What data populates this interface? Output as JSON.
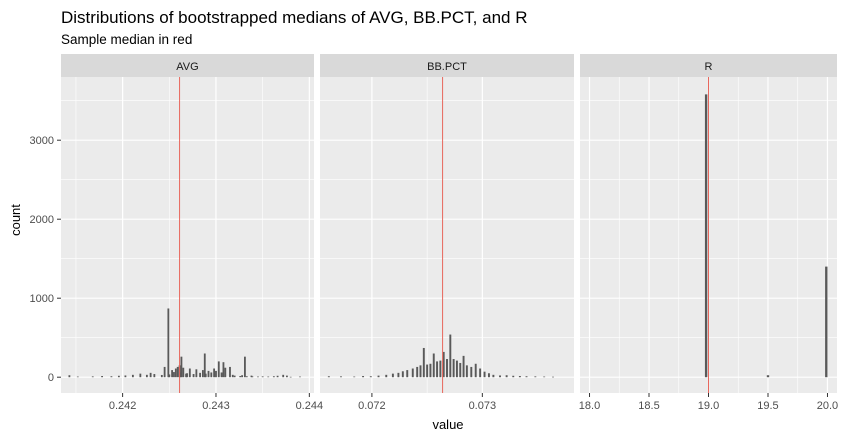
{
  "chart_data": {
    "type": "bar",
    "title": "Distributions of bootstrapped medians of AVG, BB.PCT, and R",
    "subtitle": "Sample median in red",
    "xlabel": "value",
    "ylabel": "count",
    "ylim": [
      -200,
      3800
    ],
    "yticks": [
      0,
      1000,
      2000,
      3000
    ],
    "colors": {
      "bar": "#595959",
      "median_line": "#e8675d",
      "panel_bg": "#ebebeb",
      "strip_bg": "#d9d9d9",
      "grid": "#ffffff"
    },
    "panels": [
      {
        "label": "AVG",
        "xlim": [
          0.24134,
          0.24405
        ],
        "xticks": [
          0.242,
          0.243,
          0.244
        ],
        "xtick_labels": [
          "0.242",
          "0.243",
          "0.244"
        ],
        "median": 0.24261,
        "bar_width": 1.95e-05,
        "bars": [
          [
            0.24143,
            25
          ],
          [
            0.24152,
            8
          ],
          [
            0.24168,
            10
          ],
          [
            0.24178,
            15
          ],
          [
            0.24188,
            12
          ],
          [
            0.24196,
            18
          ],
          [
            0.24203,
            22
          ],
          [
            0.24211,
            30
          ],
          [
            0.24219,
            45
          ],
          [
            0.24226,
            30
          ],
          [
            0.24234,
            40
          ],
          [
            0.24242,
            28
          ],
          [
            0.2425,
            35
          ],
          [
            0.24255,
            65
          ],
          [
            0.24262,
            60
          ],
          [
            0.24269,
            50
          ],
          [
            0.24276,
            40
          ],
          [
            0.24283,
            55
          ],
          [
            0.24289,
            45
          ],
          [
            0.24295,
            60
          ],
          [
            0.243,
            80
          ],
          [
            0.24306,
            60
          ],
          [
            0.2431,
            120
          ],
          [
            0.24315,
            130
          ],
          [
            0.2432,
            20
          ],
          [
            0.24326,
            15
          ],
          [
            0.24333,
            12
          ],
          [
            0.24339,
            10
          ],
          [
            0.24345,
            8
          ],
          [
            0.2435,
            10
          ],
          [
            0.24356,
            8
          ],
          [
            0.24362,
            12
          ],
          [
            0.24366,
            18
          ],
          [
            0.24372,
            30
          ],
          [
            0.24376,
            20
          ],
          [
            0.2438,
            5
          ],
          [
            0.2439,
            8
          ],
          [
            0.24268,
            45
          ],
          [
            0.2423,
            55
          ],
          [
            0.24245,
            130
          ],
          [
            0.24249,
            870
          ],
          [
            0.24253,
            90
          ],
          [
            0.24257,
            110
          ],
          [
            0.24259,
            130
          ],
          [
            0.24261,
            150
          ],
          [
            0.24263,
            260
          ],
          [
            0.24265,
            120
          ],
          [
            0.24272,
            110
          ],
          [
            0.24279,
            100
          ],
          [
            0.24286,
            90
          ],
          [
            0.24288,
            300
          ],
          [
            0.24292,
            80
          ],
          [
            0.24298,
            110
          ],
          [
            0.24303,
            200
          ],
          [
            0.24308,
            190
          ],
          [
            0.24318,
            30
          ],
          [
            0.24328,
            25
          ],
          [
            0.24331,
            260
          ],
          [
            0.24338,
            20
          ]
        ]
      },
      {
        "label": "BB.PCT",
        "xlim": [
          0.07153,
          0.07383
        ],
        "xticks": [
          0.072,
          0.073
        ],
        "xtick_labels": [
          "0.072",
          "0.073"
        ],
        "median": 0.07264,
        "bar_width": 1.75e-05,
        "bars": [
          [
            0.07161,
            12
          ],
          [
            0.07172,
            10
          ],
          [
            0.07184,
            8
          ],
          [
            0.07192,
            15
          ],
          [
            0.07199,
            12
          ],
          [
            0.07206,
            20
          ],
          [
            0.07213,
            30
          ],
          [
            0.07219,
            45
          ],
          [
            0.07224,
            55
          ],
          [
            0.07228,
            75
          ],
          [
            0.07232,
            90
          ],
          [
            0.07237,
            110
          ],
          [
            0.07241,
            130
          ],
          [
            0.07244,
            150
          ],
          [
            0.07247,
            370
          ],
          [
            0.0725,
            160
          ],
          [
            0.07253,
            170
          ],
          [
            0.07256,
            300
          ],
          [
            0.07259,
            200
          ],
          [
            0.07262,
            210
          ],
          [
            0.07265,
            320
          ],
          [
            0.07268,
            230
          ],
          [
            0.07271,
            540
          ],
          [
            0.07274,
            230
          ],
          [
            0.07277,
            210
          ],
          [
            0.0728,
            180
          ],
          [
            0.07283,
            270
          ],
          [
            0.07286,
            150
          ],
          [
            0.0729,
            130
          ],
          [
            0.07294,
            170
          ],
          [
            0.07298,
            110
          ],
          [
            0.07302,
            70
          ],
          [
            0.07306,
            50
          ],
          [
            0.0731,
            30
          ],
          [
            0.07316,
            22
          ],
          [
            0.07322,
            25
          ],
          [
            0.07328,
            18
          ],
          [
            0.07334,
            15
          ],
          [
            0.0734,
            12
          ],
          [
            0.07348,
            10
          ],
          [
            0.07356,
            8
          ],
          [
            0.07364,
            6
          ]
        ]
      },
      {
        "label": "R",
        "xlim": [
          17.92,
          20.08
        ],
        "xticks": [
          18.0,
          18.5,
          19.0,
          19.5,
          20.0
        ],
        "xtick_labels": [
          "18.0",
          "18.5",
          "19.0",
          "19.5",
          "20.0"
        ],
        "median": 19.0,
        "bar_width": 0.02,
        "bars": [
          [
            18.98,
            3580
          ],
          [
            19.5,
            25
          ],
          [
            19.99,
            1400
          ]
        ]
      }
    ]
  }
}
